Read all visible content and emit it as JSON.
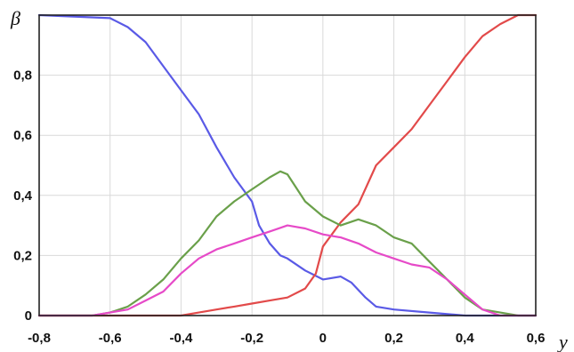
{
  "chart_data": {
    "type": "line",
    "title": "",
    "xlabel": "y",
    "ylabel": "β",
    "xlim": [
      -0.8,
      0.6
    ],
    "ylim": [
      0,
      1.0
    ],
    "x_ticks": [
      "-0,8",
      "-0,6",
      "-0,4",
      "-0,2",
      "0",
      "0,2",
      "0,4",
      "0,6"
    ],
    "x_tick_values": [
      -0.8,
      -0.6,
      -0.4,
      -0.2,
      0,
      0.2,
      0.4,
      0.6
    ],
    "y_ticks": [
      "0",
      "0,2",
      "0,4",
      "0,6",
      "0,8"
    ],
    "y_tick_values": [
      0,
      0.2,
      0.4,
      0.6,
      0.8
    ],
    "grid": true,
    "legend": "none",
    "series": [
      {
        "color": "#5a5ae6",
        "x": [
          -0.8,
          -0.6,
          -0.55,
          -0.5,
          -0.45,
          -0.4,
          -0.35,
          -0.3,
          -0.25,
          -0.2,
          -0.18,
          -0.15,
          -0.12,
          -0.1,
          -0.05,
          0,
          0.05,
          0.08,
          0.12,
          0.15,
          0.2,
          0.3,
          0.4,
          0.5,
          0.6
        ],
        "y": [
          1.0,
          0.99,
          0.96,
          0.91,
          0.83,
          0.75,
          0.67,
          0.56,
          0.46,
          0.38,
          0.3,
          0.24,
          0.2,
          0.19,
          0.15,
          0.12,
          0.13,
          0.11,
          0.06,
          0.03,
          0.02,
          0.01,
          0.0,
          0.0,
          0.0
        ]
      },
      {
        "color": "#e24a4a",
        "x": [
          -0.8,
          -0.4,
          -0.35,
          -0.3,
          -0.25,
          -0.2,
          -0.15,
          -0.1,
          -0.05,
          -0.02,
          0,
          0.05,
          0.1,
          0.15,
          0.2,
          0.25,
          0.3,
          0.35,
          0.4,
          0.45,
          0.5,
          0.55,
          0.6
        ],
        "y": [
          0.0,
          0.0,
          0.01,
          0.02,
          0.03,
          0.04,
          0.05,
          0.06,
          0.09,
          0.14,
          0.23,
          0.31,
          0.37,
          0.5,
          0.56,
          0.62,
          0.7,
          0.78,
          0.86,
          0.93,
          0.97,
          1.0,
          1.0
        ]
      },
      {
        "color": "#6aa04a",
        "x": [
          -0.8,
          -0.65,
          -0.6,
          -0.55,
          -0.5,
          -0.45,
          -0.4,
          -0.35,
          -0.3,
          -0.25,
          -0.2,
          -0.15,
          -0.12,
          -0.1,
          -0.05,
          0,
          0.05,
          0.1,
          0.15,
          0.2,
          0.25,
          0.3,
          0.35,
          0.4,
          0.45,
          0.5,
          0.55,
          0.6
        ],
        "y": [
          0.0,
          0.0,
          0.01,
          0.03,
          0.07,
          0.12,
          0.19,
          0.25,
          0.33,
          0.38,
          0.42,
          0.46,
          0.48,
          0.47,
          0.38,
          0.33,
          0.3,
          0.32,
          0.3,
          0.26,
          0.24,
          0.18,
          0.12,
          0.06,
          0.02,
          0.01,
          0.0,
          0.0
        ]
      },
      {
        "color": "#e64ac8",
        "x": [
          -0.8,
          -0.65,
          -0.6,
          -0.55,
          -0.5,
          -0.45,
          -0.4,
          -0.35,
          -0.3,
          -0.25,
          -0.2,
          -0.15,
          -0.1,
          -0.05,
          0,
          0.05,
          0.1,
          0.15,
          0.2,
          0.25,
          0.3,
          0.35,
          0.4,
          0.45,
          0.5,
          0.55,
          0.6
        ],
        "y": [
          0.0,
          0.0,
          0.01,
          0.02,
          0.05,
          0.08,
          0.14,
          0.19,
          0.22,
          0.24,
          0.26,
          0.28,
          0.3,
          0.29,
          0.27,
          0.26,
          0.24,
          0.21,
          0.19,
          0.17,
          0.16,
          0.12,
          0.07,
          0.02,
          0.0,
          0.0,
          0.0
        ]
      }
    ]
  }
}
